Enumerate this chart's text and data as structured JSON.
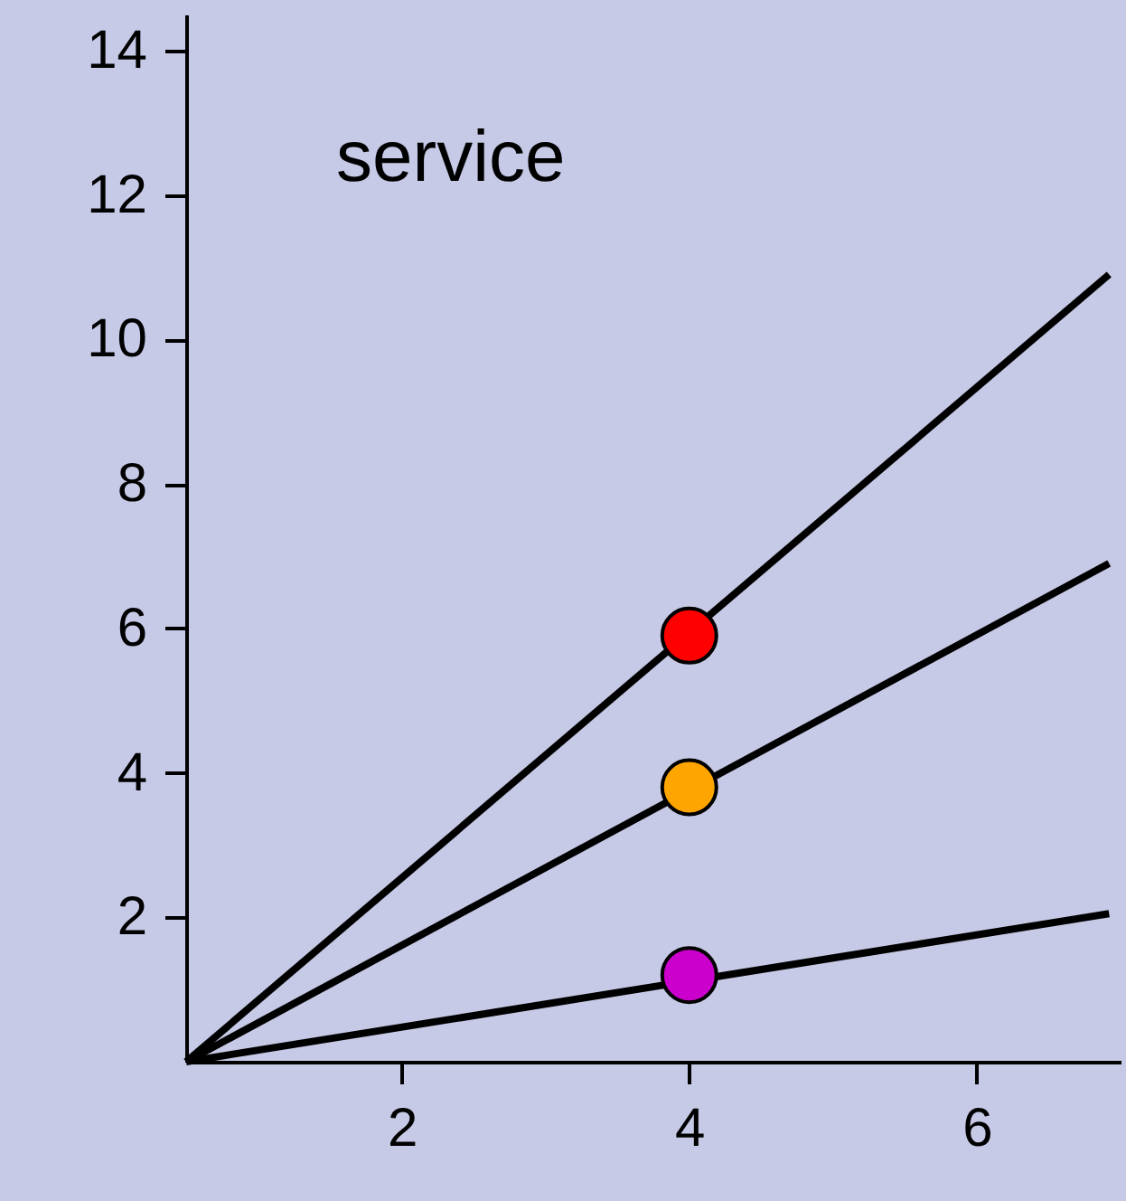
{
  "chart_data": {
    "type": "line",
    "annotations": [
      "service"
    ],
    "xlim": [
      0.5,
      7
    ],
    "xticks": [
      2,
      4,
      6
    ],
    "ylim": [
      0,
      14.5
    ],
    "yticks": [
      2,
      4,
      6,
      8,
      10,
      12,
      14
    ],
    "grid": false,
    "line_style": "solid",
    "marker": "none",
    "series": [
      {
        "color": "#000000",
        "x": [
          0.5,
          6.92
        ],
        "values": [
          0,
          10.9
        ]
      },
      {
        "color": "#000000",
        "x": [
          0.5,
          6.92
        ],
        "values": [
          0,
          6.9
        ]
      },
      {
        "color": "#000000",
        "x": [
          0.5,
          6.92
        ],
        "values": [
          0,
          2.05
        ]
      },
      {
        "type": "scatter",
        "marker": "circle",
        "x": [
          4,
          4,
          4
        ],
        "values": [
          5.9,
          3.8,
          1.2
        ],
        "colors": [
          "#ff0000",
          "#ffa500",
          "#cc00cc"
        ]
      }
    ]
  }
}
